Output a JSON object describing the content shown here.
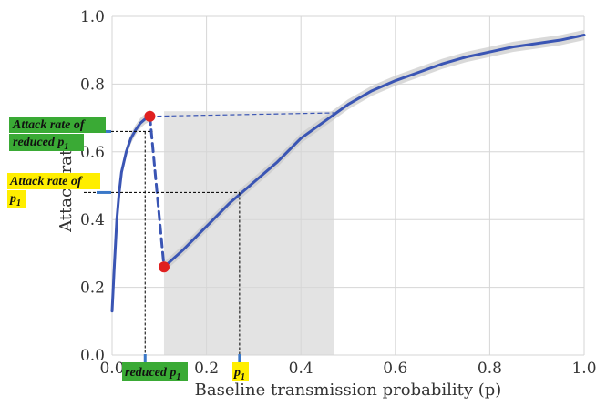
{
  "chart_data": {
    "type": "line",
    "xlabel": "Baseline transmission probability (p)",
    "ylabel": "Attack rate",
    "xlim": [
      0.0,
      1.0
    ],
    "ylim": [
      0.0,
      1.0
    ],
    "x_ticks": [
      "0.0",
      "0.2",
      "0.4",
      "0.6",
      "0.8",
      "1.0"
    ],
    "y_ticks": [
      "0.0",
      "0.2",
      "0.4",
      "0.6",
      "0.8",
      "1.0"
    ],
    "grid": true,
    "shaded_region": {
      "x_start": 0.11,
      "x_end": 0.47,
      "color": "#e3e3e3"
    },
    "series": [
      {
        "color": "#3a55b4",
        "x": [
          0.0,
          0.005,
          0.01,
          0.015,
          0.02,
          0.03,
          0.04,
          0.05,
          0.06,
          0.07,
          0.08
        ],
        "y": [
          0.13,
          0.27,
          0.4,
          0.48,
          0.54,
          0.6,
          0.64,
          0.665,
          0.685,
          0.697,
          0.705
        ]
      },
      {
        "color": "#3a55b4",
        "dashed": true,
        "x": [
          0.08,
          0.11
        ],
        "y": [
          0.705,
          0.26
        ]
      },
      {
        "color": "#3a55b4",
        "x": [
          0.11,
          0.15,
          0.2,
          0.25,
          0.3,
          0.35,
          0.4,
          0.45,
          0.5,
          0.55,
          0.6,
          0.65,
          0.7,
          0.75,
          0.8,
          0.85,
          0.9,
          0.95,
          1.0
        ],
        "y": [
          0.26,
          0.31,
          0.38,
          0.45,
          0.51,
          0.57,
          0.64,
          0.69,
          0.74,
          0.78,
          0.81,
          0.835,
          0.86,
          0.88,
          0.895,
          0.91,
          0.92,
          0.93,
          0.945
        ]
      }
    ],
    "markers": [
      {
        "x": 0.08,
        "y": 0.705,
        "color": "#e02020"
      },
      {
        "x": 0.11,
        "y": 0.26,
        "color": "#e02020"
      }
    ],
    "annotations": {
      "reduced_attack_rate": {
        "lines": [
          "Attack rate of",
          "reduced p"
        ],
        "subscript": "1",
        "color": "#3aaa35",
        "y": 0.66
      },
      "attack_rate": {
        "lines": [
          "Attack rate of",
          "p"
        ],
        "subscript": "1",
        "color": "#ffee00",
        "y": 0.48
      },
      "reduced_p1": {
        "text": "reduced p",
        "subscript": "1",
        "color": "#3aaa35",
        "x": 0.07
      },
      "p1": {
        "text": "p",
        "subscript": "1",
        "color": "#ffee00",
        "x": 0.27
      }
    }
  }
}
